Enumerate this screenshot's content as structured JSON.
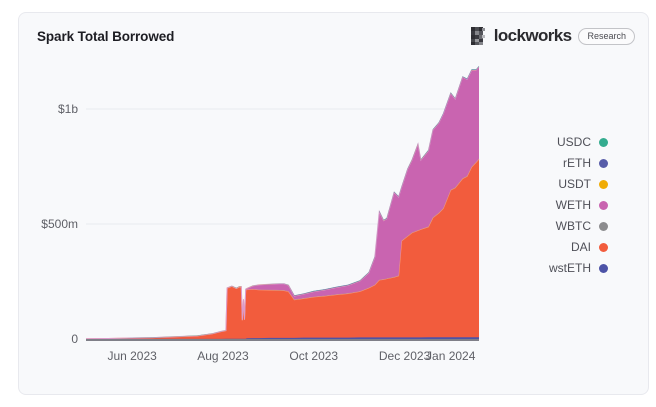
{
  "header": {
    "title": "Spark Total Borrowed"
  },
  "brand": {
    "name": "Blockworks",
    "display_rest": "lockworks",
    "badge": "Research"
  },
  "legend": {
    "position": "right",
    "items": [
      {
        "label": "USDC",
        "color": "#34ac8f"
      },
      {
        "label": "rETH",
        "color": "#585da9"
      },
      {
        "label": "USDT",
        "color": "#f0ac05"
      },
      {
        "label": "WETH",
        "color": "#c964b0"
      },
      {
        "label": "WBTC",
        "color": "#8c8c8e"
      },
      {
        "label": "DAI",
        "color": "#f25c3d"
      },
      {
        "label": "wstETH",
        "color": "#4d53a7"
      }
    ]
  },
  "chart_data": {
    "type": "area",
    "stacked": true,
    "title": "Spark Total Borrowed",
    "unit": "USD millions",
    "x_axis": "date",
    "x_start_date": "2023-05-01",
    "x_days": [
      0,
      15,
      31,
      45,
      61,
      75,
      85,
      91,
      94,
      94.8,
      98,
      101,
      103,
      104.3,
      105,
      105.8,
      106.5,
      107.3,
      108,
      112,
      116,
      123,
      130,
      133,
      136,
      140,
      146,
      153,
      160,
      168,
      176,
      184,
      190,
      194,
      197,
      200,
      202,
      207,
      210,
      212,
      216,
      219,
      223,
      225,
      230,
      233,
      237,
      240,
      245,
      248,
      253,
      256,
      259,
      262,
      264
    ],
    "series": [
      {
        "name": "wstETH",
        "color": "#4d53a7",
        "stroke": "#4d53a7",
        "values": [
          0,
          0,
          0.3,
          0.3,
          0.5,
          0.5,
          0.5,
          0.5,
          1,
          1,
          1,
          1,
          1,
          1,
          1,
          1,
          1,
          1,
          3,
          4,
          4,
          5,
          5,
          5,
          5,
          5,
          6,
          6,
          6,
          6,
          6,
          7,
          7,
          7,
          7,
          7,
          7,
          7,
          7,
          7,
          7,
          7,
          7,
          7,
          8,
          8,
          8,
          8,
          8,
          8,
          8,
          8,
          8,
          8,
          8
        ]
      },
      {
        "name": "DAI",
        "color": "#f25c3d",
        "stroke": "#f79d7e",
        "values": [
          1,
          2,
          4,
          6,
          9,
          13,
          22,
          32,
          35,
          220,
          228,
          218,
          225,
          225,
          80,
          170,
          82,
          212,
          212,
          213,
          210,
          208,
          207,
          206,
          202,
          166,
          170,
          177,
          181,
          187,
          192,
          200,
          215,
          228,
          250,
          252,
          255,
          262,
          268,
          420,
          440,
          455,
          465,
          470,
          480,
          520,
          540,
          560,
          640,
          650,
          690,
          700,
          740,
          760,
          775
        ]
      },
      {
        "name": "WBTC",
        "color": "#8c8c8e",
        "stroke": null,
        "values": [
          0,
          0,
          0,
          0,
          0,
          0,
          0,
          0,
          0,
          0,
          0,
          0,
          0,
          0,
          0,
          0,
          0,
          0,
          0,
          0,
          1,
          1,
          1,
          1,
          1,
          1,
          1,
          1,
          1,
          1,
          1,
          1,
          1,
          1,
          1,
          1,
          1,
          1,
          1,
          1,
          1,
          1,
          1,
          1,
          1,
          1,
          1,
          1,
          1,
          1,
          1,
          1,
          1,
          1,
          1
        ]
      },
      {
        "name": "WETH",
        "color": "#c964b0",
        "stroke": "#dd9bcc",
        "values": [
          0,
          0,
          0,
          0,
          1,
          1,
          1,
          1,
          1,
          1,
          1,
          2,
          2,
          2,
          2,
          2,
          2,
          4,
          5,
          14,
          20,
          24,
          27,
          28,
          26,
          15,
          18,
          22,
          25,
          30,
          34,
          44,
          65,
          120,
          296,
          255,
          260,
          368,
          342,
          232,
          290,
          315,
          375,
          300,
          330,
          380,
          390,
          410,
          420,
          385,
          440,
          420,
          420,
          400,
          400
        ]
      },
      {
        "name": "USDT",
        "color": "#f0ac05",
        "stroke": null,
        "values": [
          0,
          0,
          0,
          0,
          0.5,
          0.5,
          0.5,
          0.5,
          0.5,
          0.5,
          0.5,
          0.5,
          0.5,
          0.5,
          0.5,
          0.5,
          0.5,
          0.5,
          0.5,
          0.5,
          0.5,
          0.5,
          0.5,
          0.5,
          0.5,
          0.5,
          0.5,
          0.5,
          0.5,
          0.5,
          0.5,
          0.5,
          0.5,
          0.5,
          0.5,
          0.5,
          0.5,
          0.5,
          0.5,
          0.5,
          0.5,
          0.5,
          0.5,
          0.5,
          0.5,
          0.5,
          0.5,
          0.5,
          0.5,
          0.5,
          0.5,
          0.5,
          0.5,
          0.5,
          0.5
        ]
      },
      {
        "name": "rETH",
        "color": "#585da9",
        "stroke": null,
        "values": [
          0,
          0,
          0,
          0,
          0,
          0,
          0,
          0,
          0,
          0,
          0,
          0,
          0,
          0,
          0,
          0,
          0,
          0,
          0,
          0,
          0,
          0,
          0,
          0,
          0,
          2,
          2,
          2,
          2,
          2,
          2,
          2,
          2,
          2,
          2,
          2,
          2,
          2,
          2,
          2,
          2,
          2,
          2,
          2,
          2,
          2,
          2,
          2,
          2,
          2,
          2,
          2,
          2,
          2,
          2
        ]
      },
      {
        "name": "USDC",
        "color": "#34ac8f",
        "stroke": null,
        "values": [
          0,
          0,
          0.5,
          0.5,
          0.5,
          0.5,
          0.5,
          0.5,
          0.5,
          0.5,
          0.5,
          0.5,
          0.5,
          0.5,
          0.5,
          0.5,
          0.5,
          0.5,
          0.5,
          0.5,
          0.5,
          0.5,
          0.5,
          0.5,
          0.5,
          0.5,
          0.5,
          1,
          1,
          1,
          1,
          1,
          1,
          1,
          1,
          1,
          1,
          1,
          1,
          1,
          1,
          1,
          1,
          1,
          1,
          1,
          1,
          1,
          1,
          1,
          1,
          1,
          1,
          1,
          1
        ]
      }
    ],
    "legend_order": [
      "USDC",
      "rETH",
      "USDT",
      "WETH",
      "WBTC",
      "DAI",
      "wstETH"
    ],
    "xticks": [
      {
        "day": 31,
        "label": "Jun 2023"
      },
      {
        "day": 92,
        "label": "Aug 2023"
      },
      {
        "day": 153,
        "label": "Oct 2023"
      },
      {
        "day": 214,
        "label": "Dec 2023"
      },
      {
        "day": 245,
        "label": "Jan 2024"
      }
    ],
    "yticks": [
      {
        "value": 0,
        "label": "0"
      },
      {
        "value": 500,
        "label": "$500m"
      },
      {
        "value": 1000,
        "label": "$1b"
      }
    ],
    "ylim": [
      0,
      1200
    ],
    "grid": "horizontal",
    "legend_position": "right"
  },
  "colors": {
    "card_bg": "#f8f9fb",
    "card_border": "#e8e9ee",
    "grid_line": "#e8eaef",
    "axis_line": "#7f7f88",
    "axis_text": "#5f6067",
    "title_text": "#1d1d23",
    "legend_text": "#4f5058"
  }
}
